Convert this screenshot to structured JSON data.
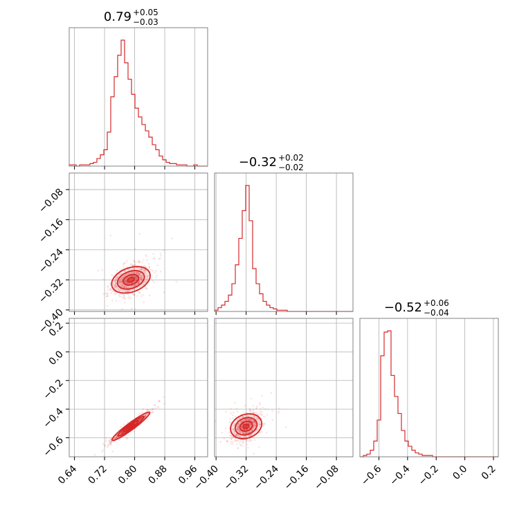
{
  "chart_data": {
    "type": "corner",
    "color": "#d62728",
    "grid": true,
    "params": [
      {
        "median": "0.79",
        "plus": "+0.05",
        "minus": "−0.03",
        "range": [
          0.626,
          0.994
        ],
        "ticks": [
          0.64,
          0.72,
          0.8,
          0.88,
          0.96
        ],
        "tick_labels": [
          "0.64",
          "0.72",
          "0.80",
          "0.88",
          "0.96"
        ],
        "center": 0.79,
        "sd": 0.025
      },
      {
        "median": "−0.32",
        "plus": "+0.02",
        "minus": "−0.02",
        "range": [
          -0.404,
          -0.036
        ],
        "ticks": [
          -0.4,
          -0.32,
          -0.24,
          -0.16,
          -0.08
        ],
        "tick_labels": [
          "−0.40",
          "−0.32",
          "−0.24",
          "−0.16",
          "−0.08"
        ],
        "center": -0.32,
        "sd": 0.02
      },
      {
        "median": "−0.52",
        "plus": "+0.06",
        "minus": "−0.04",
        "range": [
          -0.733,
          0.234
        ],
        "ticks": [
          -0.6,
          -0.4,
          -0.2,
          0.0,
          0.2
        ],
        "tick_labels": [
          "−0.6",
          "−0.4",
          "−0.2",
          "0.0",
          "0.2"
        ],
        "center": -0.52,
        "sd": 0.05
      }
    ],
    "histograms": [
      {
        "param": 0,
        "bins": 40,
        "counts": [
          0.01,
          0.01,
          0.0,
          0.01,
          0.01,
          0.01,
          0.02,
          0.03,
          0.06,
          0.09,
          0.13,
          0.27,
          0.55,
          0.71,
          0.88,
          1.0,
          0.82,
          0.69,
          0.57,
          0.46,
          0.39,
          0.33,
          0.28,
          0.23,
          0.17,
          0.13,
          0.08,
          0.05,
          0.03,
          0.02,
          0.02,
          0.01,
          0.01,
          0.01,
          0.0,
          0.0,
          0.01,
          0.0,
          0.0,
          0.0
        ]
      },
      {
        "param": 1,
        "bins": 40,
        "counts": [
          0.01,
          0.03,
          0.05,
          0.08,
          0.13,
          0.22,
          0.37,
          0.58,
          0.8,
          1.0,
          0.72,
          0.34,
          0.22,
          0.14,
          0.08,
          0.05,
          0.03,
          0.02,
          0.01,
          0.01,
          0.01,
          0.0,
          0.0,
          0.0,
          0.0,
          0.0,
          0.0,
          0.0,
          0.0,
          0.0,
          0.0,
          0.0,
          0.0,
          0.0,
          0.0,
          0.0,
          0.0,
          0.0,
          0.0,
          0.0
        ]
      },
      {
        "param": 2,
        "bins": 40,
        "counts": [
          0.0,
          0.01,
          0.02,
          0.05,
          0.12,
          0.28,
          0.77,
          0.95,
          0.96,
          0.62,
          0.46,
          0.33,
          0.2,
          0.12,
          0.08,
          0.05,
          0.03,
          0.02,
          0.01,
          0.01,
          0.01,
          0.0,
          0.0,
          0.0,
          0.0,
          0.0,
          0.0,
          0.0,
          0.0,
          0.0,
          0.0,
          0.0,
          0.0,
          0.0,
          0.0,
          0.0,
          0.0,
          0.0,
          0.0,
          0.0
        ]
      }
    ],
    "pairs": [
      {
        "x": 0,
        "y": 1,
        "correlation": 0.45
      },
      {
        "x": 0,
        "y": 2,
        "correlation": 0.97
      },
      {
        "x": 1,
        "y": 2,
        "correlation": 0.4
      }
    ]
  }
}
